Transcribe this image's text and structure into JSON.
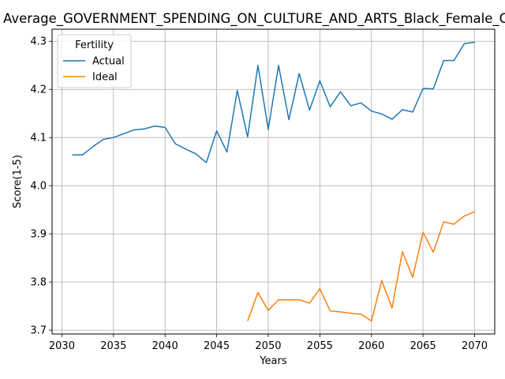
{
  "chart_data": {
    "type": "line",
    "title": "Average_GOVERNMENT_SPENDING_ON_CULTURE_AND_ARTS_Black_Female_Cou",
    "xlabel": "Years",
    "ylabel": "Score(1-5)",
    "xlim": [
      2029.05,
      2071.95
    ],
    "ylim": [
      3.692,
      4.325
    ],
    "xticks": [
      2030,
      2035,
      2040,
      2045,
      2050,
      2055,
      2060,
      2065,
      2070
    ],
    "yticks": [
      3.7,
      3.8,
      3.9,
      4.0,
      4.1,
      4.2,
      4.3
    ],
    "xtick_labels": [
      "2030",
      "2035",
      "2040",
      "2045",
      "2050",
      "2055",
      "2060",
      "2065",
      "2070"
    ],
    "ytick_labels": [
      "3.7",
      "3.8",
      "3.9",
      "4.0",
      "4.1",
      "4.2",
      "4.3"
    ],
    "grid": true,
    "legend": {
      "title": "Fertility",
      "position": "top-left"
    },
    "series": [
      {
        "name": "Actual",
        "color": "#1f77b4",
        "x": [
          2031,
          2032,
          2033,
          2034,
          2035,
          2036,
          2037,
          2038,
          2039,
          2040,
          2041,
          2042,
          2043,
          2044,
          2045,
          2046,
          2047,
          2048,
          2049,
          2050,
          2051,
          2052,
          2053,
          2054,
          2055,
          2056,
          2057,
          2058,
          2059,
          2060,
          2061,
          2062,
          2063,
          2064,
          2065,
          2066,
          2067,
          2068,
          2069,
          2070
        ],
        "y": [
          4.064,
          4.064,
          4.081,
          4.096,
          4.1,
          4.108,
          4.116,
          4.118,
          4.124,
          4.121,
          4.087,
          4.076,
          4.066,
          4.048,
          4.114,
          4.07,
          4.198,
          4.101,
          4.25,
          4.117,
          4.25,
          4.137,
          4.233,
          4.157,
          4.218,
          4.164,
          4.195,
          4.166,
          4.172,
          4.155,
          4.149,
          4.138,
          4.158,
          4.153,
          4.202,
          4.201,
          4.26,
          4.26,
          4.295,
          4.298
        ]
      },
      {
        "name": "Ideal",
        "color": "#ff7f0e",
        "x": [
          2048,
          2049,
          2050,
          2051,
          2052,
          2053,
          2054,
          2055,
          2056,
          2057,
          2058,
          2059,
          2060,
          2061,
          2062,
          2063,
          2064,
          2065,
          2066,
          2067,
          2068,
          2069,
          2070
        ],
        "y": [
          3.719,
          3.778,
          3.741,
          3.763,
          3.763,
          3.763,
          3.756,
          3.786,
          3.74,
          3.738,
          3.735,
          3.733,
          3.719,
          3.803,
          3.746,
          3.863,
          3.81,
          3.903,
          3.862,
          3.925,
          3.92,
          3.937,
          3.946
        ]
      }
    ]
  }
}
